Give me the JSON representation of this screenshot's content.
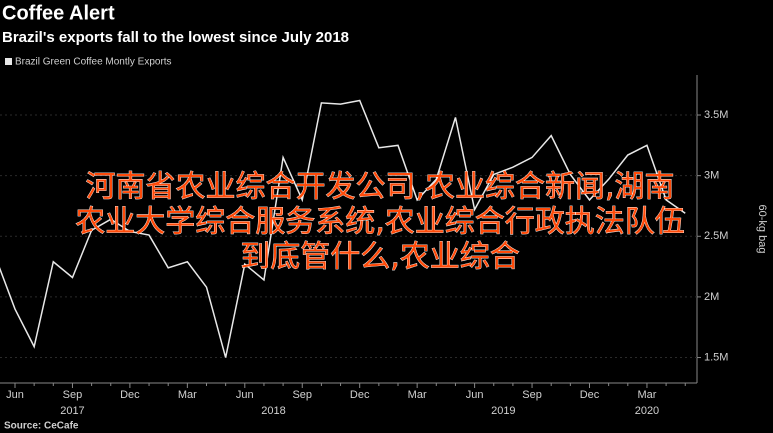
{
  "chart_data": {
    "type": "line",
    "title": "Coffee Alert",
    "subtitle": "Brazil's exports fall to the lowest since July 2018",
    "source": "Source: CeCafe",
    "y_axis_label": "60-kg bag",
    "categories": [
      null,
      "Jun",
      null,
      null,
      "Sep",
      null,
      null,
      "Dec",
      null,
      null,
      "Mar",
      null,
      null,
      "Jun",
      null,
      null,
      "Sep",
      null,
      null,
      "Dec",
      null,
      null,
      "Mar",
      null,
      null,
      "Jun",
      null,
      null,
      "Sep",
      null,
      null,
      "Dec",
      null,
      null,
      "Mar",
      null,
      null
    ],
    "year_groups": [
      {
        "label": "2017",
        "from": 1,
        "to": 7
      },
      {
        "label": "2018",
        "from": 10,
        "to": 19
      },
      {
        "label": "2019",
        "from": 22,
        "to": 31
      },
      {
        "label": "2020",
        "from": 34,
        "to": 34
      }
    ],
    "series": [
      {
        "name": "Brazil Green Coffee Montly Exports",
        "color": "#e8e8e8",
        "values": [
          2320000,
          1900000,
          1590000,
          2290000,
          2160000,
          2550000,
          2640000,
          2540000,
          2510000,
          2240000,
          2290000,
          2080000,
          1500000,
          2270000,
          2140000,
          3150000,
          2800000,
          3600000,
          3590000,
          3620000,
          3230000,
          3250000,
          2800000,
          2970000,
          3480000,
          2720000,
          3010000,
          3070000,
          3150000,
          3330000,
          3010000,
          2800000,
          2970000,
          3170000,
          3250000,
          2800000,
          2690000
        ]
      }
    ],
    "ylim": [
      1290000,
      3830000
    ],
    "yticks": [
      {
        "value": 1500000,
        "label": "1.5M"
      },
      {
        "value": 2000000,
        "label": "2M"
      },
      {
        "value": 2500000,
        "label": "2.5M"
      },
      {
        "value": 3000000,
        "label": "3M"
      },
      {
        "value": 3500000,
        "label": "3.5M"
      }
    ],
    "grid": true
  },
  "overlay": {
    "lines": [
      "河南省农业综合开发公司,农业综合新闻,湖南",
      "农业大学综合服务系统,农业综合行政执法队伍",
      "到底管什么,农业综合"
    ],
    "color": "#ff4b0a"
  }
}
